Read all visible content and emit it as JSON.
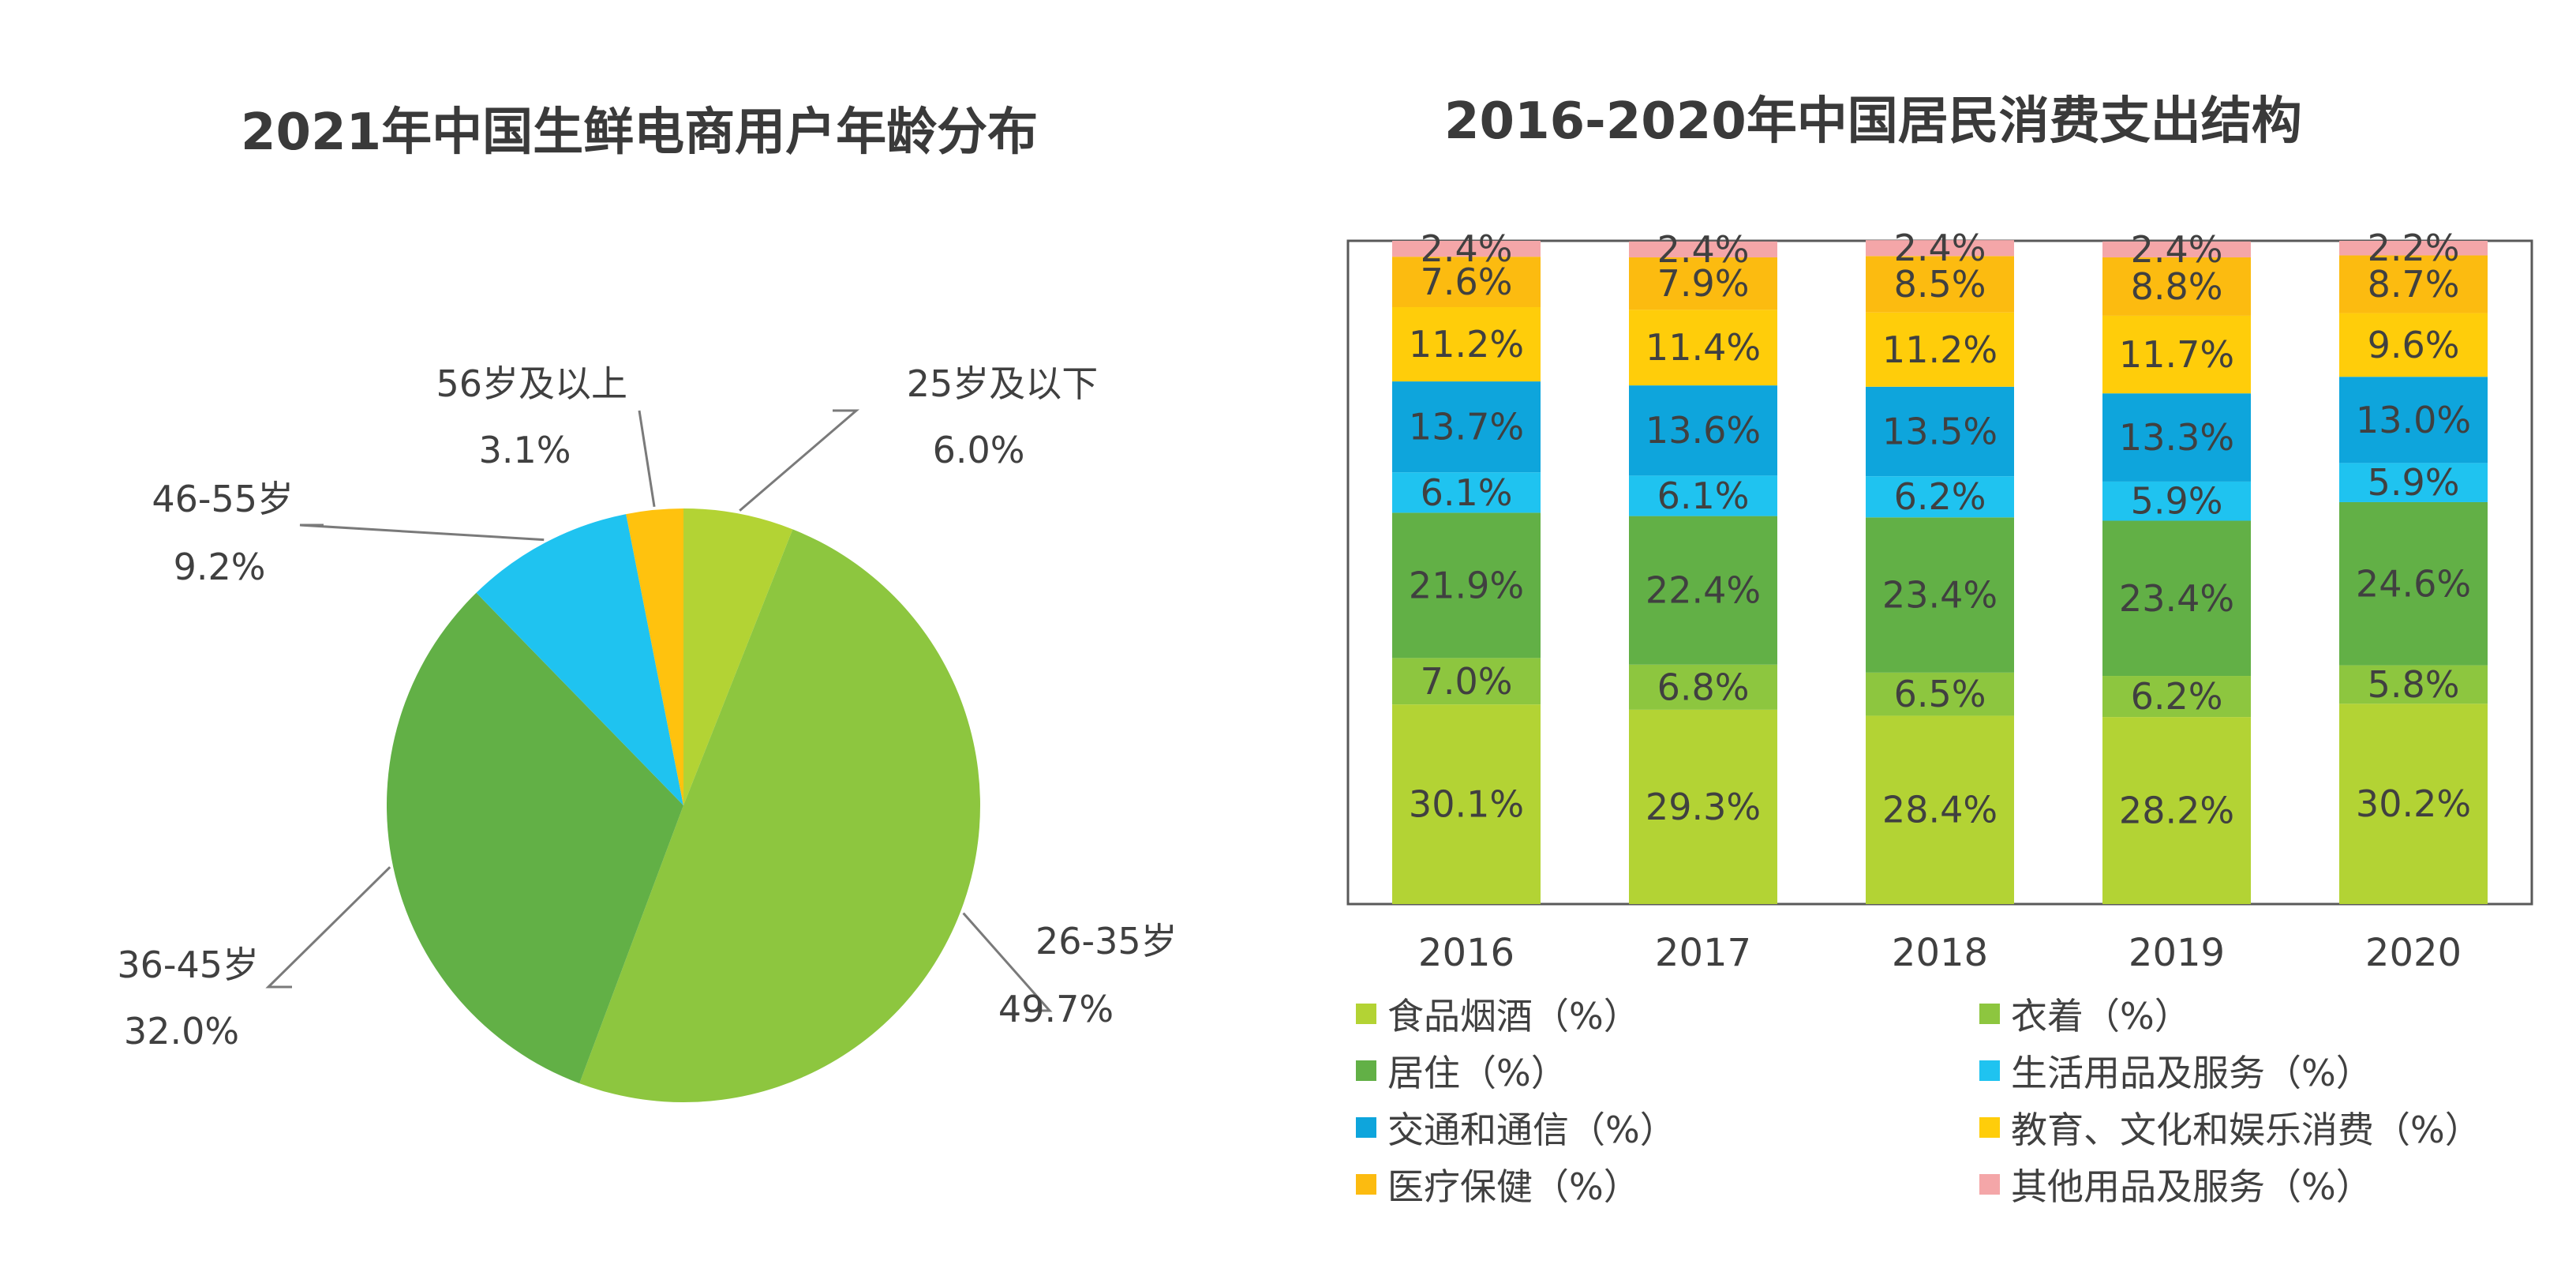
{
  "chart_data": [
    {
      "type": "pie",
      "title": "2021年中国生鲜电商用户年龄分布",
      "slices": [
        {
          "label": "25岁及以下",
          "value": 6.0,
          "text": "6.0%",
          "color": "#b3d334"
        },
        {
          "label": "26-35岁",
          "value": 49.7,
          "text": "49.7%",
          "color": "#8dc63f"
        },
        {
          "label": "36-45岁",
          "value": 32.0,
          "text": "32.0%",
          "color": "#62b046"
        },
        {
          "label": "46-55岁",
          "value": 9.2,
          "text": "9.2%",
          "color": "#1fc3f0"
        },
        {
          "label": "56岁及以上",
          "value": 3.1,
          "text": "3.1%",
          "color": "#ffc20e"
        }
      ]
    },
    {
      "type": "bar",
      "stacked": true,
      "title": "2016-2020年中国居民消费支出结构",
      "categories": [
        "2016",
        "2017",
        "2018",
        "2019",
        "2020"
      ],
      "ylim": [
        0,
        100
      ],
      "series": [
        {
          "name": "食品烟酒（%）",
          "color": "#b3d334",
          "values": [
            30.1,
            29.3,
            28.4,
            28.2,
            30.2
          ]
        },
        {
          "name": "衣着（%）",
          "color": "#8dc63f",
          "values": [
            7.0,
            6.8,
            6.5,
            6.2,
            5.8
          ]
        },
        {
          "name": "居住（%）",
          "color": "#62b046",
          "values": [
            21.9,
            22.4,
            23.4,
            23.4,
            24.6
          ]
        },
        {
          "name": "生活用品及服务（%）",
          "color": "#1fc3f0",
          "values": [
            6.1,
            6.1,
            6.2,
            5.9,
            5.9
          ]
        },
        {
          "name": "交通和通信（%）",
          "color": "#0ea5dc",
          "values": [
            13.7,
            13.6,
            13.5,
            13.3,
            13.0
          ]
        },
        {
          "name": "教育、文化和娱乐消费（%）",
          "color": "#ffcd0a",
          "values": [
            11.2,
            11.4,
            11.2,
            11.7,
            9.6
          ]
        },
        {
          "name": "医疗保健（%）",
          "color": "#fcbb10",
          "values": [
            7.6,
            7.9,
            8.5,
            8.8,
            8.7
          ]
        },
        {
          "name": "其他用品及服务（%）",
          "color": "#f4a6a8",
          "values": [
            2.4,
            2.4,
            2.4,
            2.4,
            2.2
          ]
        }
      ],
      "legend_position": "bottom"
    }
  ]
}
